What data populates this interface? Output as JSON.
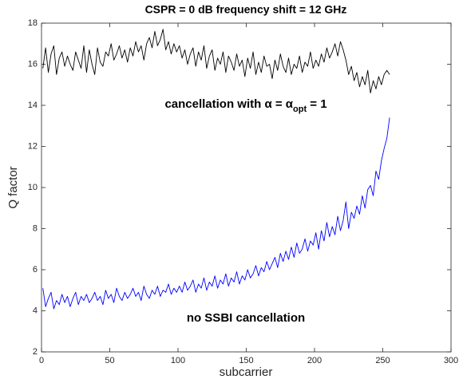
{
  "chart_data": {
    "type": "line",
    "title": "CSPR = 0 dB frequency shift = 12 GHz",
    "x_label": "subcarrier",
    "y_label": "Q factor",
    "xlim": [
      0,
      300
    ],
    "ylim": [
      2,
      18
    ],
    "xticks": [
      0,
      50,
      100,
      150,
      200,
      250,
      300
    ],
    "yticks": [
      2,
      4,
      6,
      8,
      10,
      12,
      14,
      16,
      18
    ],
    "grid": false,
    "annotations": [
      {
        "text": "cancellation with α = α",
        "subscript": "opt",
        "suffix": " = 1"
      },
      {
        "text": "no SSBI cancellation"
      }
    ],
    "x": [
      1,
      3,
      5,
      7,
      9,
      11,
      13,
      15,
      17,
      19,
      21,
      23,
      25,
      27,
      29,
      31,
      33,
      35,
      37,
      39,
      41,
      43,
      45,
      47,
      49,
      51,
      53,
      55,
      57,
      59,
      61,
      63,
      65,
      67,
      69,
      71,
      73,
      75,
      77,
      79,
      81,
      83,
      85,
      87,
      89,
      91,
      93,
      95,
      97,
      99,
      101,
      103,
      105,
      107,
      109,
      111,
      113,
      115,
      117,
      119,
      121,
      123,
      125,
      127,
      129,
      131,
      133,
      135,
      137,
      139,
      141,
      143,
      145,
      147,
      149,
      151,
      153,
      155,
      157,
      159,
      161,
      163,
      165,
      167,
      169,
      171,
      173,
      175,
      177,
      179,
      181,
      183,
      185,
      187,
      189,
      191,
      193,
      195,
      197,
      199,
      201,
      203,
      205,
      207,
      209,
      211,
      213,
      215,
      217,
      219,
      221,
      223,
      225,
      227,
      229,
      231,
      233,
      235,
      237,
      239,
      241,
      243,
      245,
      247,
      249,
      251,
      253,
      255
    ],
    "series": [
      {
        "color": "#000000",
        "values": [
          15.8,
          16.8,
          15.6,
          16.5,
          16.9,
          15.5,
          16.3,
          16.6,
          15.9,
          16.4,
          16.0,
          15.7,
          16.6,
          16.2,
          15.8,
          16.9,
          15.6,
          16.7,
          16.0,
          15.5,
          16.8,
          16.1,
          15.9,
          16.6,
          16.4,
          17.0,
          16.2,
          16.5,
          16.9,
          16.3,
          16.7,
          16.1,
          16.8,
          16.4,
          17.1,
          16.6,
          16.9,
          16.2,
          17.0,
          17.3,
          16.8,
          17.6,
          16.9,
          17.2,
          17.7,
          16.7,
          17.1,
          16.5,
          17.0,
          16.6,
          16.9,
          16.3,
          16.7,
          16.0,
          16.5,
          16.8,
          15.9,
          16.6,
          16.2,
          16.9,
          15.8,
          16.4,
          16.7,
          15.7,
          16.3,
          16.0,
          16.6,
          15.6,
          16.4,
          16.1,
          15.7,
          16.5,
          15.9,
          16.2,
          15.4,
          16.3,
          15.8,
          16.6,
          15.5,
          16.1,
          15.6,
          16.4,
          15.9,
          16.0,
          15.3,
          16.2,
          15.7,
          16.5,
          15.9,
          15.6,
          16.3,
          15.5,
          16.0,
          15.8,
          16.4,
          15.6,
          16.1,
          15.9,
          16.6,
          15.8,
          16.2,
          15.9,
          16.5,
          16.1,
          16.8,
          16.3,
          16.6,
          17.0,
          16.4,
          17.1,
          16.7,
          16.2,
          15.5,
          15.9,
          15.2,
          15.6,
          14.9,
          15.4,
          15.0,
          15.7,
          14.6,
          15.2,
          14.8,
          15.4,
          15.0,
          15.5,
          15.7,
          15.5
        ]
      },
      {
        "color": "#0000ff",
        "values": [
          5.1,
          4.2,
          4.6,
          4.9,
          4.1,
          4.5,
          4.3,
          4.8,
          4.4,
          4.7,
          4.2,
          4.6,
          4.9,
          4.3,
          4.7,
          4.5,
          4.8,
          4.4,
          4.6,
          4.9,
          4.5,
          4.7,
          4.3,
          5.0,
          4.6,
          4.8,
          4.4,
          5.1,
          4.7,
          4.5,
          4.9,
          4.6,
          4.8,
          5.1,
          4.7,
          4.9,
          4.5,
          5.2,
          4.8,
          4.6,
          5.0,
          4.8,
          5.2,
          4.7,
          5.0,
          4.9,
          5.3,
          4.8,
          5.1,
          4.9,
          5.2,
          4.9,
          5.4,
          5.0,
          5.2,
          5.5,
          4.9,
          5.3,
          5.1,
          5.6,
          5.0,
          5.4,
          5.2,
          5.7,
          5.1,
          5.5,
          5.3,
          5.8,
          5.2,
          5.6,
          5.4,
          5.9,
          5.3,
          5.7,
          5.5,
          6.0,
          5.6,
          5.8,
          6.2,
          5.7,
          6.1,
          5.9,
          6.4,
          6.0,
          6.3,
          6.6,
          6.1,
          6.8,
          6.4,
          6.9,
          6.5,
          7.1,
          6.6,
          7.3,
          6.8,
          7.0,
          7.5,
          6.9,
          7.4,
          7.2,
          7.8,
          7.0,
          7.9,
          7.4,
          8.3,
          7.6,
          8.1,
          7.7,
          8.6,
          7.9,
          8.4,
          9.3,
          8.0,
          8.8,
          8.5,
          9.1,
          8.7,
          9.6,
          9.0,
          9.9,
          10.1,
          9.6,
          10.8,
          10.4,
          11.3,
          11.9,
          12.4,
          13.4
        ]
      }
    ]
  }
}
